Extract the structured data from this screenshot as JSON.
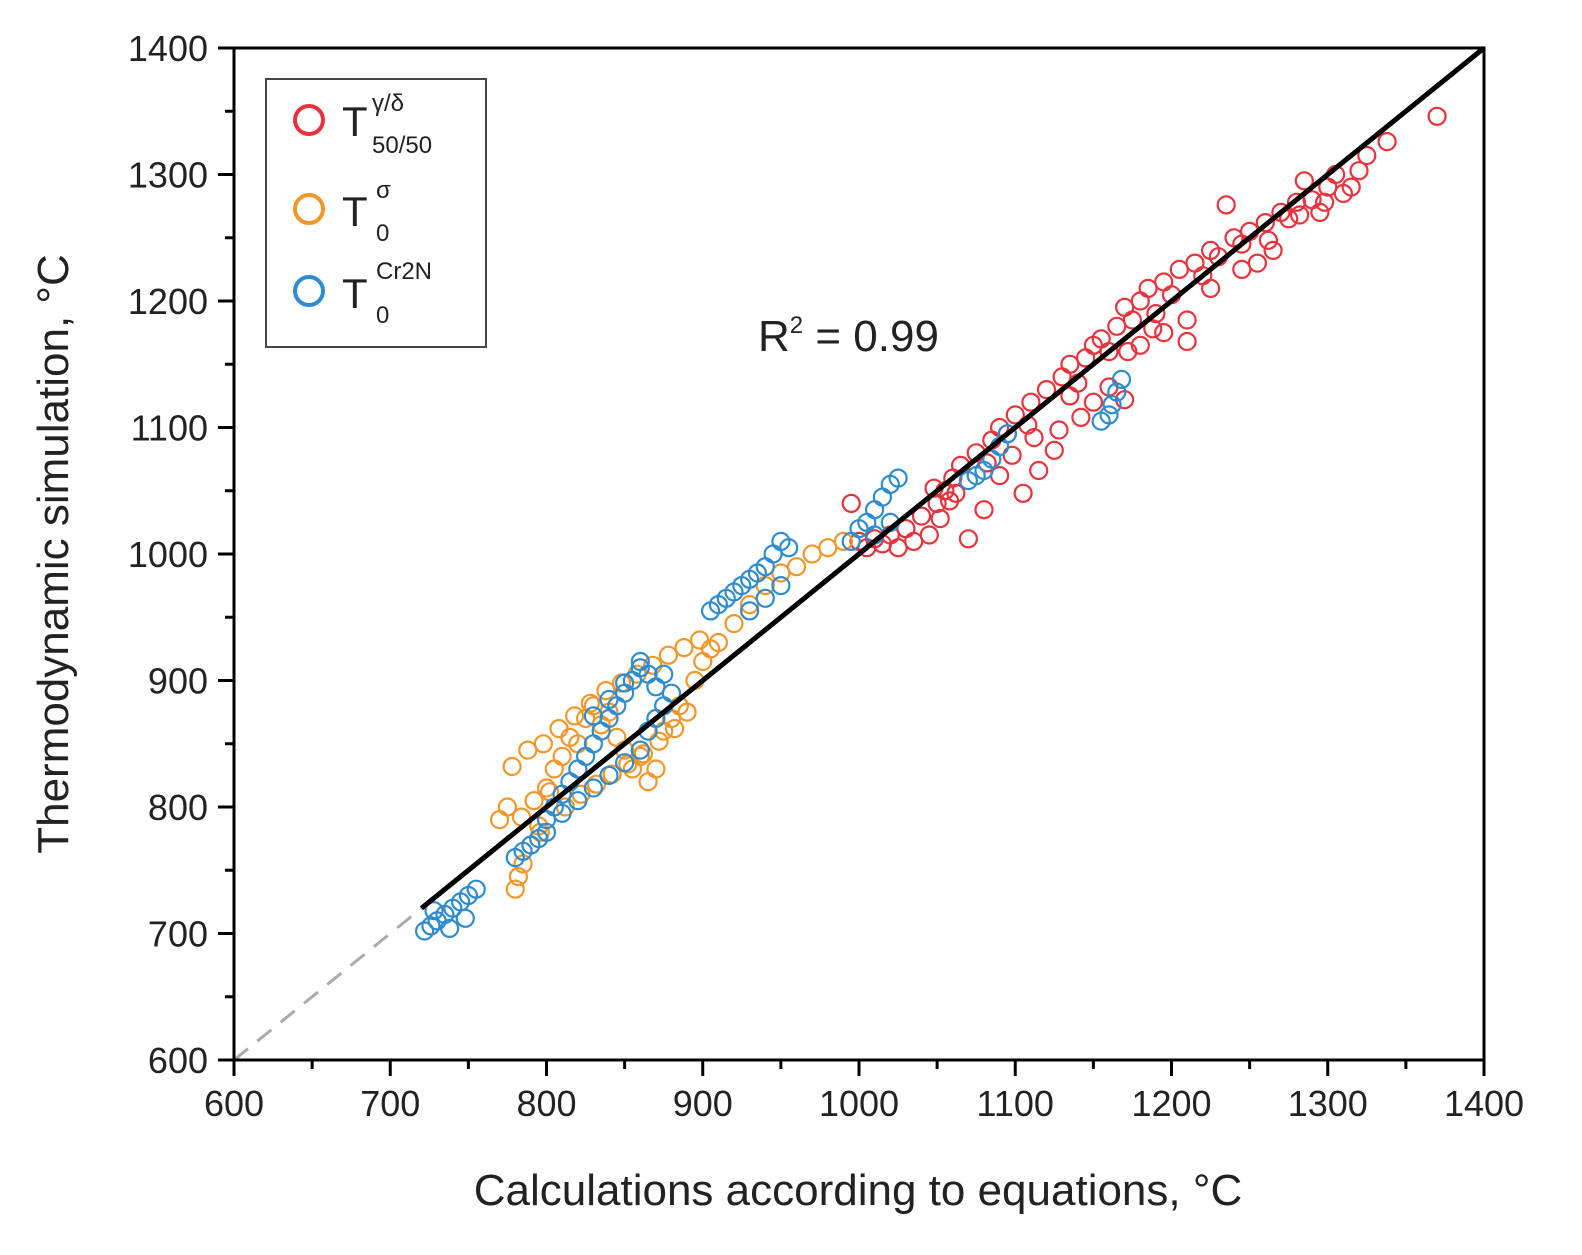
{
  "chart_data": {
    "type": "scatter",
    "xlabel": "Calculations according to equations, °C",
    "ylabel": "Thermodynamic simulation, °C",
    "xlim": [
      600,
      1400
    ],
    "ylim": [
      600,
      1400
    ],
    "xticks": [
      600,
      700,
      800,
      900,
      1000,
      1100,
      1200,
      1300,
      1400
    ],
    "yticks": [
      600,
      700,
      800,
      900,
      1000,
      1100,
      1200,
      1300,
      1400
    ],
    "xtick_labels": [
      "600",
      "700",
      "800",
      "900",
      "1000",
      "1100",
      "1200",
      "1300",
      "1400"
    ],
    "ytick_labels": [
      "600",
      "700",
      "800",
      "900",
      "1000",
      "1100",
      "1200",
      "1300",
      "1400"
    ],
    "annotation": {
      "prefix": "R",
      "sup": "2",
      "text": " = 0.99"
    },
    "legend": {
      "position": "top-left",
      "entries": [
        {
          "base": "T",
          "sup": "γ/δ",
          "sub": "50/50",
          "color": "#e8323c"
        },
        {
          "base": "T",
          "sup": "σ",
          "sub": "0",
          "color": "#f0962a"
        },
        {
          "base": "T",
          "sup": "Cr2N",
          "sub": "0",
          "color": "#2f8bd0"
        }
      ]
    },
    "fit_line": {
      "x": [
        720,
        1400
      ],
      "y": [
        720,
        1400
      ],
      "color": "#000000"
    },
    "identity_line_dashed": {
      "x": [
        600,
        720
      ],
      "y": [
        600,
        720
      ],
      "color": "#aaaaaa"
    },
    "series": [
      {
        "name": "T γ/δ 50/50",
        "color": "#e8323c",
        "points": [
          [
            995,
            1040
          ],
          [
            1000,
            1010
          ],
          [
            1005,
            1005
          ],
          [
            1010,
            1012
          ],
          [
            1015,
            1008
          ],
          [
            1020,
            1015
          ],
          [
            1025,
            1005
          ],
          [
            1030,
            1020
          ],
          [
            1035,
            1010
          ],
          [
            1040,
            1030
          ],
          [
            1045,
            1015
          ],
          [
            1050,
            1040
          ],
          [
            1055,
            1050
          ],
          [
            1060,
            1060
          ],
          [
            1065,
            1070
          ],
          [
            1070,
            1012
          ],
          [
            1075,
            1080
          ],
          [
            1080,
            1035
          ],
          [
            1085,
            1090
          ],
          [
            1090,
            1100
          ],
          [
            1095,
            1095
          ],
          [
            1100,
            1110
          ],
          [
            1105,
            1048
          ],
          [
            1110,
            1120
          ],
          [
            1115,
            1066
          ],
          [
            1120,
            1130
          ],
          [
            1125,
            1082
          ],
          [
            1130,
            1140
          ],
          [
            1135,
            1150
          ],
          [
            1140,
            1135
          ],
          [
            1145,
            1155
          ],
          [
            1150,
            1165
          ],
          [
            1155,
            1170
          ],
          [
            1160,
            1160
          ],
          [
            1165,
            1180
          ],
          [
            1170,
            1195
          ],
          [
            1175,
            1185
          ],
          [
            1180,
            1200
          ],
          [
            1185,
            1210
          ],
          [
            1190,
            1190
          ],
          [
            1195,
            1215
          ],
          [
            1200,
            1205
          ],
          [
            1205,
            1225
          ],
          [
            1210,
            1168
          ],
          [
            1215,
            1230
          ],
          [
            1220,
            1220
          ],
          [
            1225,
            1240
          ],
          [
            1230,
            1235
          ],
          [
            1235,
            1276
          ],
          [
            1240,
            1250
          ],
          [
            1245,
            1245
          ],
          [
            1250,
            1255
          ],
          [
            1255,
            1230
          ],
          [
            1260,
            1262
          ],
          [
            1265,
            1240
          ],
          [
            1270,
            1270
          ],
          [
            1275,
            1265
          ],
          [
            1280,
            1278
          ],
          [
            1285,
            1295
          ],
          [
            1290,
            1280
          ],
          [
            1295,
            1270
          ],
          [
            1300,
            1290
          ],
          [
            1305,
            1300
          ],
          [
            1310,
            1285
          ],
          [
            1315,
            1290
          ],
          [
            1320,
            1303
          ],
          [
            1325,
            1315
          ],
          [
            1338,
            1326
          ],
          [
            1370,
            1346
          ],
          [
            1062,
            1048
          ],
          [
            1090,
            1062
          ],
          [
            1098,
            1078
          ],
          [
            1112,
            1092
          ],
          [
            1128,
            1098
          ],
          [
            1142,
            1108
          ],
          [
            1150,
            1120
          ],
          [
            1160,
            1132
          ],
          [
            1170,
            1122
          ],
          [
            1180,
            1165
          ],
          [
            1195,
            1175
          ],
          [
            1210,
            1185
          ],
          [
            1225,
            1210
          ],
          [
            1245,
            1225
          ],
          [
            1262,
            1248
          ],
          [
            1282,
            1268
          ],
          [
            1298,
            1278
          ],
          [
            1048,
            1052
          ],
          [
            1052,
            1028
          ],
          [
            1058,
            1042
          ],
          [
            1082,
            1072
          ],
          [
            1108,
            1102
          ],
          [
            1135,
            1125
          ],
          [
            1172,
            1160
          ],
          [
            1188,
            1178
          ]
        ]
      },
      {
        "name": "T σ 0",
        "color": "#f0962a",
        "points": [
          [
            770,
            790
          ],
          [
            775,
            800
          ],
          [
            780,
            735
          ],
          [
            782,
            745
          ],
          [
            785,
            755
          ],
          [
            790,
            770
          ],
          [
            795,
            785
          ],
          [
            800,
            815
          ],
          [
            805,
            830
          ],
          [
            810,
            840
          ],
          [
            815,
            855
          ],
          [
            820,
            850
          ],
          [
            825,
            870
          ],
          [
            830,
            880
          ],
          [
            835,
            865
          ],
          [
            840,
            875
          ],
          [
            845,
            855
          ],
          [
            850,
            845
          ],
          [
            855,
            830
          ],
          [
            860,
            840
          ],
          [
            865,
            820
          ],
          [
            870,
            830
          ],
          [
            875,
            860
          ],
          [
            880,
            870
          ],
          [
            885,
            880
          ],
          [
            890,
            875
          ],
          [
            895,
            900
          ],
          [
            900,
            915
          ],
          [
            905,
            925
          ],
          [
            910,
            930
          ],
          [
            920,
            945
          ],
          [
            930,
            960
          ],
          [
            940,
            975
          ],
          [
            950,
            985
          ],
          [
            960,
            990
          ],
          [
            970,
            1000
          ],
          [
            980,
            1005
          ],
          [
            990,
            1010
          ],
          [
            778,
            832
          ],
          [
            788,
            845
          ],
          [
            798,
            850
          ],
          [
            808,
            862
          ],
          [
            818,
            872
          ],
          [
            828,
            882
          ],
          [
            838,
            892
          ],
          [
            848,
            898
          ],
          [
            858,
            905
          ],
          [
            868,
            912
          ],
          [
            878,
            920
          ],
          [
            888,
            926
          ],
          [
            898,
            932
          ],
          [
            812,
            800
          ],
          [
            822,
            810
          ],
          [
            832,
            818
          ],
          [
            842,
            826
          ],
          [
            852,
            834
          ],
          [
            862,
            842
          ],
          [
            872,
            852
          ],
          [
            882,
            862
          ],
          [
            792,
            805
          ],
          [
            802,
            812
          ],
          [
            784,
            792
          ],
          [
            796,
            780
          ]
        ]
      },
      {
        "name": "T Cr2N 0",
        "color": "#2f8bd0",
        "points": [
          [
            722,
            702
          ],
          [
            726,
            706
          ],
          [
            730,
            710
          ],
          [
            735,
            715
          ],
          [
            740,
            720
          ],
          [
            745,
            725
          ],
          [
            750,
            730
          ],
          [
            755,
            735
          ],
          [
            728,
            718
          ],
          [
            738,
            704
          ],
          [
            748,
            712
          ],
          [
            780,
            760
          ],
          [
            785,
            765
          ],
          [
            790,
            770
          ],
          [
            795,
            775
          ],
          [
            800,
            790
          ],
          [
            805,
            800
          ],
          [
            810,
            810
          ],
          [
            815,
            820
          ],
          [
            820,
            830
          ],
          [
            825,
            840
          ],
          [
            830,
            850
          ],
          [
            835,
            860
          ],
          [
            840,
            870
          ],
          [
            845,
            880
          ],
          [
            850,
            890
          ],
          [
            855,
            900
          ],
          [
            860,
            910
          ],
          [
            865,
            905
          ],
          [
            870,
            895
          ],
          [
            875,
            905
          ],
          [
            800,
            780
          ],
          [
            810,
            795
          ],
          [
            820,
            805
          ],
          [
            830,
            815
          ],
          [
            840,
            825
          ],
          [
            850,
            835
          ],
          [
            860,
            845
          ],
          [
            865,
            860
          ],
          [
            870,
            870
          ],
          [
            875,
            880
          ],
          [
            880,
            890
          ],
          [
            830,
            872
          ],
          [
            840,
            885
          ],
          [
            850,
            898
          ],
          [
            860,
            915
          ],
          [
            905,
            955
          ],
          [
            910,
            960
          ],
          [
            915,
            965
          ],
          [
            920,
            970
          ],
          [
            925,
            975
          ],
          [
            930,
            980
          ],
          [
            935,
            985
          ],
          [
            940,
            990
          ],
          [
            945,
            1000
          ],
          [
            950,
            1010
          ],
          [
            955,
            1005
          ],
          [
            930,
            955
          ],
          [
            940,
            965
          ],
          [
            950,
            975
          ],
          [
            995,
            1010
          ],
          [
            1000,
            1020
          ],
          [
            1005,
            1025
          ],
          [
            1010,
            1035
          ],
          [
            1015,
            1045
          ],
          [
            1020,
            1055
          ],
          [
            1025,
            1060
          ],
          [
            1010,
            1015
          ],
          [
            1020,
            1025
          ],
          [
            1070,
            1058
          ],
          [
            1075,
            1062
          ],
          [
            1080,
            1066
          ],
          [
            1085,
            1075
          ],
          [
            1090,
            1085
          ],
          [
            1095,
            1095
          ],
          [
            1155,
            1105
          ],
          [
            1160,
            1110
          ],
          [
            1162,
            1118
          ],
          [
            1165,
            1128
          ],
          [
            1168,
            1138
          ]
        ]
      }
    ]
  }
}
